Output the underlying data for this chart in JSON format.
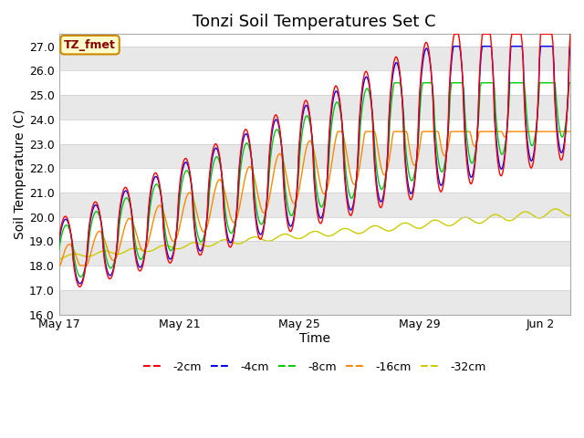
{
  "title": "Tonzi Soil Temperatures Set C",
  "xlabel": "Time",
  "ylabel": "Soil Temperature (C)",
  "ylim": [
    16.0,
    27.5
  ],
  "yticks": [
    16.0,
    17.0,
    18.0,
    19.0,
    20.0,
    21.0,
    22.0,
    23.0,
    24.0,
    25.0,
    26.0,
    27.0
  ],
  "xtick_labels": [
    "May 17",
    "May 21",
    "May 25",
    "May 29",
    "Jun 2"
  ],
  "xtick_positions": [
    0,
    4,
    8,
    12,
    16
  ],
  "colors": {
    "-2cm": "#FF0000",
    "-4cm": "#0000FF",
    "-8cm": "#00CC00",
    "-16cm": "#FF8800",
    "-32cm": "#CCCC00"
  },
  "bg_color": "#FFFFFF",
  "annotation_text": "TZ_fmet",
  "annotation_bg": "#FFFFCC",
  "annotation_border": "#CC8800",
  "annotation_text_color": "#880000",
  "title_fontsize": 13,
  "axis_label_fontsize": 10,
  "tick_fontsize": 9,
  "legend_fontsize": 9
}
